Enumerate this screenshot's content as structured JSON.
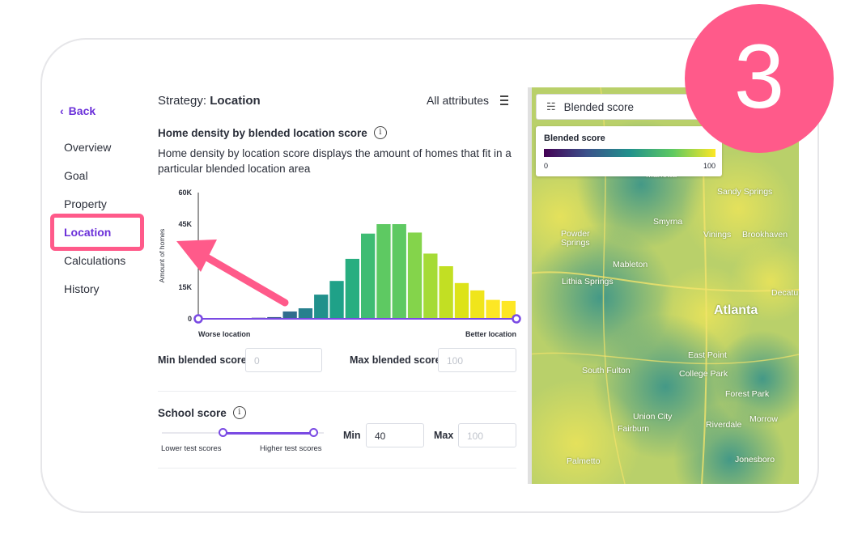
{
  "nav": {
    "back_label": "Back",
    "items": [
      {
        "label": "Overview"
      },
      {
        "label": "Goal"
      },
      {
        "label": "Property"
      },
      {
        "label": "Location"
      },
      {
        "label": "Calculations"
      },
      {
        "label": "History"
      }
    ],
    "active": "Location"
  },
  "header": {
    "strategy_prefix": "Strategy:",
    "strategy_name": "Location",
    "all_attributes": "All attributes"
  },
  "density": {
    "title": "Home density by blended location score",
    "description": "Home density by location score displays the amount of homes that fit in a particular blended location area",
    "min_label": "Min blended score",
    "min_placeholder": "0",
    "max_label": "Max blended score",
    "max_placeholder": "100"
  },
  "chart_data": {
    "type": "bar",
    "ylabel": "Amount of homes",
    "ytick_labels": [
      "60K",
      "45K",
      "15K",
      "0"
    ],
    "ylim": [
      0,
      60000
    ],
    "xlabel_left": "Worse location",
    "xlabel_right": "Better location",
    "values": [
      0,
      0,
      0,
      500,
      800,
      3500,
      5000,
      11500,
      18000,
      28500,
      40500,
      45000,
      45000,
      41000,
      31000,
      25000,
      17000,
      13500,
      9000,
      8500
    ],
    "colors": [
      "#3b0f70",
      "#3b0f70",
      "#3a2a7a",
      "#3b3c84",
      "#36548a",
      "#2f6d8e",
      "#27808e",
      "#21918c",
      "#1fa188",
      "#28ae80",
      "#3fbc73",
      "#5ec962",
      "#5ec962",
      "#84d44b",
      "#a5db36",
      "#c2df23",
      "#dde318",
      "#f0e51b",
      "#fde725",
      "#fde725"
    ]
  },
  "school": {
    "title": "School score",
    "min_label": "Min",
    "min_value": "40",
    "max_label": "Max",
    "max_placeholder": "100",
    "left_caption": "Lower test scores",
    "right_caption": "Higher test scores",
    "range": [
      40,
      100
    ]
  },
  "map": {
    "layer_label": "Blended score",
    "legend_title": "Blended score",
    "legend_min": "0",
    "legend_max": "100",
    "places": [
      {
        "name": "Marietta"
      },
      {
        "name": "Sandy Springs"
      },
      {
        "name": "Smyrna"
      },
      {
        "name": "Vinings"
      },
      {
        "name": "Brookhaven"
      },
      {
        "name": "Powder Springs"
      },
      {
        "name": "Mableton"
      },
      {
        "name": "Lithia Springs"
      },
      {
        "name": "Atlanta"
      },
      {
        "name": "East Point"
      },
      {
        "name": "South Fulton"
      },
      {
        "name": "College Park"
      },
      {
        "name": "Forest Park"
      },
      {
        "name": "Union City"
      },
      {
        "name": "Fairburn"
      },
      {
        "name": "Riverdale"
      },
      {
        "name": "Morrow"
      },
      {
        "name": "Palmetto"
      },
      {
        "name": "Jonesboro"
      },
      {
        "name": "Decatu"
      }
    ]
  },
  "step_badge": "3",
  "colors": {
    "accent": "#6b30d9",
    "highlight": "#ff5a8a"
  }
}
